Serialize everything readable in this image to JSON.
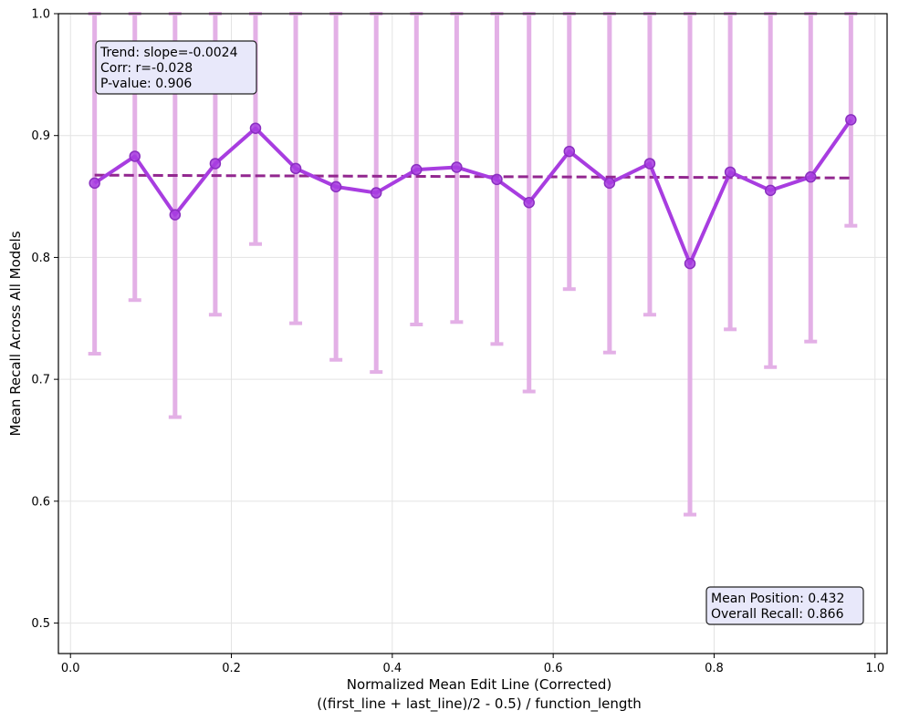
{
  "chart_data": {
    "type": "line",
    "title": "",
    "xlabel_line1": "Normalized Mean Edit Line (Corrected)",
    "xlabel_line2": "((first_line + last_line)/2 - 0.5) / function_length",
    "ylabel": "Mean Recall Across All Models",
    "xlim": [
      -0.015,
      1.015
    ],
    "ylim": [
      0.475,
      1.0
    ],
    "xticks": [
      0.0,
      0.2,
      0.4,
      0.6,
      0.8,
      1.0
    ],
    "xtick_labels": [
      "0.0",
      "0.2",
      "0.4",
      "0.6",
      "0.8",
      "1.0"
    ],
    "yticks": [
      0.5,
      0.6,
      0.7,
      0.8,
      0.9,
      1.0
    ],
    "ytick_labels": [
      "0.5",
      "0.6",
      "0.7",
      "0.8",
      "0.9",
      "1.0"
    ],
    "grid": true,
    "series": [
      {
        "x": [
          0.03,
          0.08,
          0.13,
          0.18,
          0.23,
          0.28,
          0.33,
          0.38,
          0.43,
          0.48,
          0.53,
          0.57,
          0.62,
          0.67,
          0.72,
          0.77,
          0.82,
          0.87,
          0.92,
          0.97
        ],
        "y": [
          0.861,
          0.883,
          0.835,
          0.877,
          0.906,
          0.873,
          0.858,
          0.853,
          0.872,
          0.874,
          0.864,
          0.845,
          0.887,
          0.861,
          0.877,
          0.795,
          0.87,
          0.855,
          0.866,
          0.913
        ],
        "err_low": [
          0.721,
          0.765,
          0.669,
          0.753,
          0.811,
          0.746,
          0.716,
          0.706,
          0.745,
          0.747,
          0.729,
          0.69,
          0.774,
          0.722,
          0.753,
          0.589,
          0.741,
          0.71,
          0.731,
          0.826
        ],
        "err_high": [
          1.0,
          1.0,
          1.0,
          1.0,
          1.0,
          1.0,
          1.0,
          1.0,
          1.0,
          1.0,
          1.0,
          1.0,
          1.0,
          1.0,
          1.0,
          1.0,
          1.0,
          1.0,
          1.0,
          1.0
        ],
        "color": "#a83de0",
        "error_color": "#e3b0e6"
      }
    ],
    "trend": {
      "x": [
        0.03,
        0.97
      ],
      "y": [
        0.8675,
        0.8652
      ],
      "color": "#92278f",
      "style": "dashed"
    },
    "annotations": {
      "stats_box": [
        "Trend: slope=-0.0024",
        "Corr: r=-0.028",
        "P-value: 0.906"
      ],
      "summary_box": [
        "Mean Position: 0.432",
        "Overall Recall: 0.866"
      ]
    },
    "annotation_box_fill": "#e8e8fa"
  }
}
